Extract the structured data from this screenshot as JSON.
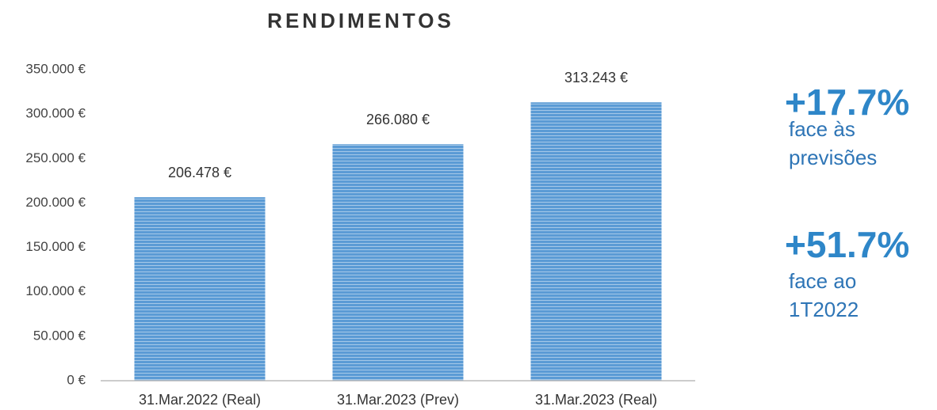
{
  "chart_data": {
    "type": "bar",
    "title": "RENDIMENTOS",
    "categories": [
      "31.Mar.2022 (Real)",
      "31.Mar.2023 (Prev)",
      "31.Mar.2023 (Real)"
    ],
    "values": [
      206478,
      266080,
      313243
    ],
    "value_labels": [
      "206.478 €",
      "266.080 €",
      "313.243 €"
    ],
    "color": "#5b9bd5",
    "ylim": [
      0,
      350000
    ],
    "yticks": [
      {
        "value": 0,
        "label": "0 €"
      },
      {
        "value": 50000,
        "label": "50.000 €"
      },
      {
        "value": 100000,
        "label": "100.000 €"
      },
      {
        "value": 150000,
        "label": "150.000 €"
      },
      {
        "value": 200000,
        "label": "200.000 €"
      },
      {
        "value": 250000,
        "label": "250.000 €"
      },
      {
        "value": 300000,
        "label": "300.000 €"
      },
      {
        "value": 350000,
        "label": "350.000 €"
      }
    ],
    "grid": false,
    "annotations": [
      {
        "value": "+17.7%",
        "text": [
          "face às",
          "previsões"
        ]
      },
      {
        "value": "+51.7%",
        "text": [
          "face ao",
          "1T2022"
        ]
      }
    ]
  }
}
